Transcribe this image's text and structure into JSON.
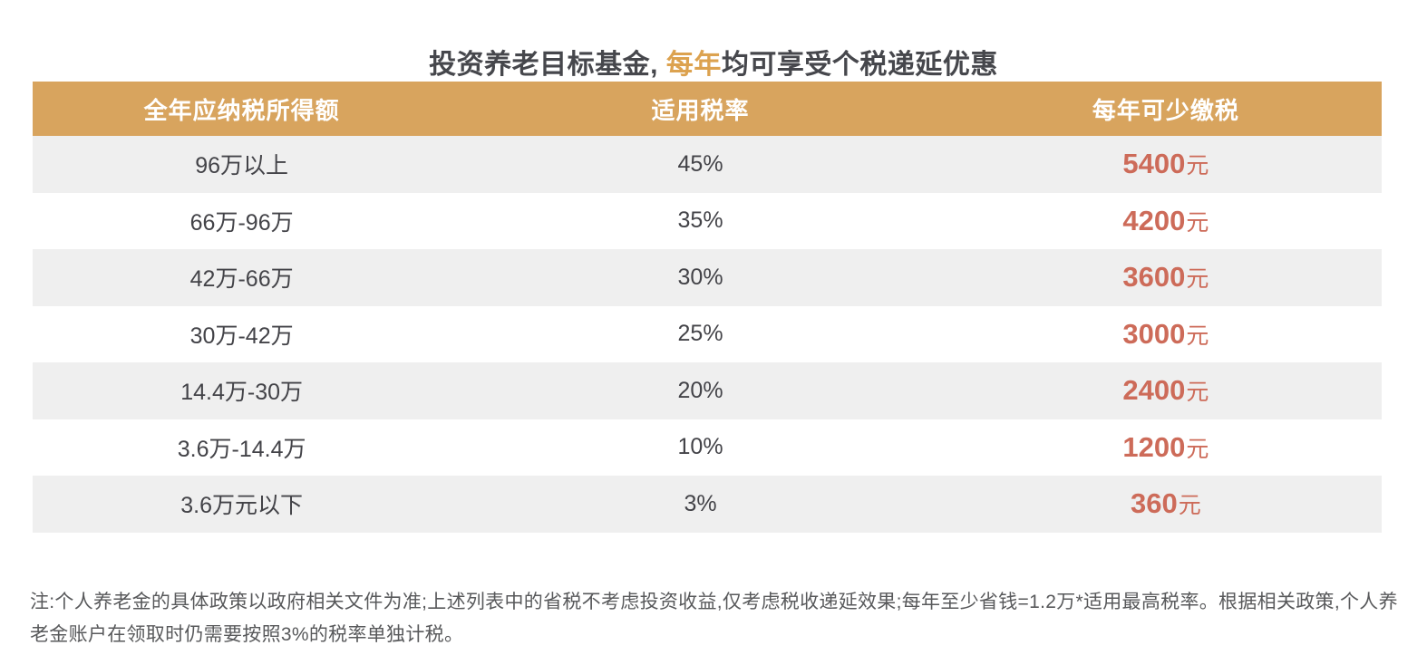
{
  "title": {
    "prefix": "投资养老目标基金, ",
    "highlight": "每年",
    "suffix": "均可享受个税递延优惠"
  },
  "chart_data": {
    "type": "table",
    "title": "投资养老目标基金, 每年均可享受个税递延优惠",
    "title_highlight": "每年",
    "columns": [
      "全年应纳税所得额",
      "适用税率",
      "每年可少缴税"
    ],
    "rows": [
      {
        "income": "96万以上",
        "rate": "45%",
        "saving_amount": "5400",
        "saving_unit": "元"
      },
      {
        "income": "66万-96万",
        "rate": "35%",
        "saving_amount": "4200",
        "saving_unit": "元"
      },
      {
        "income": "42万-66万",
        "rate": "30%",
        "saving_amount": "3600",
        "saving_unit": "元"
      },
      {
        "income": "30万-42万",
        "rate": "25%",
        "saving_amount": "3000",
        "saving_unit": "元"
      },
      {
        "income": "14.4万-30万",
        "rate": "20%",
        "saving_amount": "2400",
        "saving_unit": "元"
      },
      {
        "income": "3.6万-14.4万",
        "rate": "10%",
        "saving_amount": "1200",
        "saving_unit": "元"
      },
      {
        "income": "3.6万元以下",
        "rate": "3%",
        "saving_amount": "360",
        "saving_unit": "元"
      }
    ],
    "note": "注:个人养老金的具体政策以政府相关文件为准;上述列表中的省税不考虑投资收益,仅考虑税收递延效果;每年至少省钱=1.2万*适用最高税率。根据相关政策,个人养老金账户在领取时仍需要按照3%的税率单独计税。",
    "layout_hints": {
      "row_striping": "odd rows gray, even rows white",
      "grid": "off",
      "header_style": "gold background, white bold text"
    }
  },
  "colors": {
    "header_bg": "#D8A45E",
    "title_highlight_gold": "#DCA24F",
    "saving_red": "#CD6B59",
    "row_alt_bg": "#EFEFEF",
    "title_text": "#46474C",
    "cell_text": "#434348",
    "note_text": "#58595B",
    "background": "#FFFFFF"
  }
}
